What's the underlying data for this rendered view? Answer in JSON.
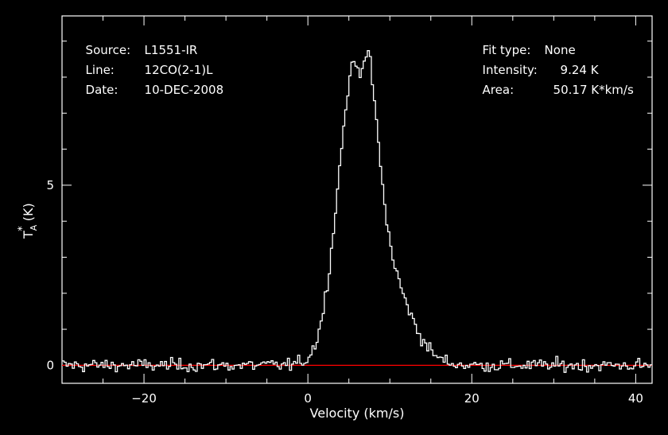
{
  "header": {
    "source_label": "Source:",
    "source_value": "L1551-IR",
    "line_label": "Line:",
    "line_value": "12CO(2-1)L",
    "date_label": "Date:",
    "date_value": "10-DEC-2008",
    "fit_label": "Fit type:",
    "fit_value": "None",
    "intensity_label": "Intensity:",
    "intensity_value": "9.24 K",
    "area_label": "Area:",
    "area_value": "50.17 K*km/s"
  },
  "colors": {
    "background": "#000000",
    "axes": "#ffffff",
    "spectrum": "#ffffff",
    "baseline": "#ff0000"
  },
  "chart_data": {
    "type": "line",
    "style": "step",
    "title": "",
    "xlabel": "Velocity (km/s)",
    "ylabel_main": "T",
    "ylabel_sub": "A",
    "ylabel_sup": "*",
    "ylabel_unit": "(K)",
    "xlim": [
      -30,
      42
    ],
    "ylim": [
      -0.5,
      9.7
    ],
    "xticks": [
      -20,
      0,
      20,
      40
    ],
    "xtick_labels": [
      "-20",
      "0",
      "20",
      "40"
    ],
    "yticks": [
      0,
      5
    ],
    "ytick_labels": [
      "0",
      "5"
    ],
    "baseline_y": 0,
    "grid": false,
    "profile": {
      "components": [
        {
          "amplitude": 6.2,
          "center": 5.5,
          "sigma": 2.0
        },
        {
          "amplitude": 3.0,
          "center": 8.6,
          "sigma": 3.2
        },
        {
          "amplitude": 2.0,
          "center": 7.5,
          "sigma": 1.2
        }
      ],
      "dip_center": 6.4,
      "dip_depth": 1.1,
      "dip_sigma": 0.5,
      "peak_velocity": 7.5,
      "peak_value": 9.24,
      "noise_rms": 0.18,
      "channel_width_kms": 0.25
    }
  }
}
